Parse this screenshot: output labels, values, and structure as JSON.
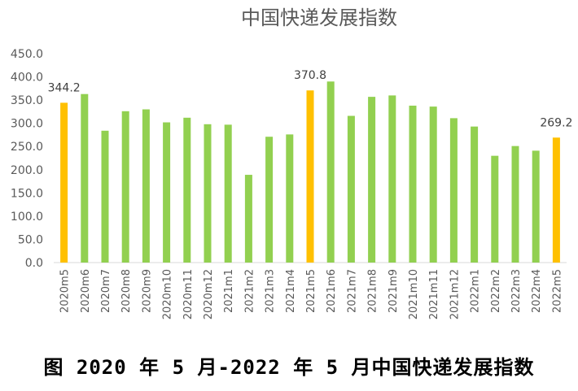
{
  "colors": {
    "normal": "#92d050",
    "highlight": "#ffc000",
    "axis": "#d9d9d9"
  },
  "caption": "图 2020 年 5 月-2022 年 5 月中国快递发展指数",
  "chart_data": {
    "type": "bar",
    "title": "中国快递发展指数",
    "xlabel": "",
    "ylabel": "",
    "ylim": [
      0,
      450
    ],
    "yticks": [
      "0.0",
      "50.0",
      "100.0",
      "150.0",
      "200.0",
      "250.0",
      "300.0",
      "350.0",
      "400.0",
      "450.0"
    ],
    "grid": false,
    "legend": "none",
    "categories": [
      "2020m5",
      "2020m6",
      "2020m7",
      "2020m8",
      "2020m9",
      "2020m10",
      "2020m11",
      "2020m12",
      "2021m1",
      "2021m2",
      "2021m3",
      "2021m4",
      "2021m5",
      "2021m6",
      "2021m7",
      "2021m8",
      "2021m9",
      "2021m10",
      "2021m11",
      "2021m12",
      "2022m1",
      "2022m2",
      "2022m3",
      "2022m4",
      "2022m5"
    ],
    "values": [
      344.2,
      363,
      284,
      326,
      330,
      302,
      312,
      298,
      297,
      189,
      271,
      276,
      370.8,
      390,
      316,
      357,
      360,
      338,
      336,
      311,
      293,
      230,
      251,
      241,
      269.2
    ],
    "highlighted": [
      0,
      12,
      24
    ],
    "data_labels": [
      {
        "index": 0,
        "text": "344.2"
      },
      {
        "index": 12,
        "text": "370.8"
      },
      {
        "index": 24,
        "text": "269.2"
      }
    ]
  }
}
